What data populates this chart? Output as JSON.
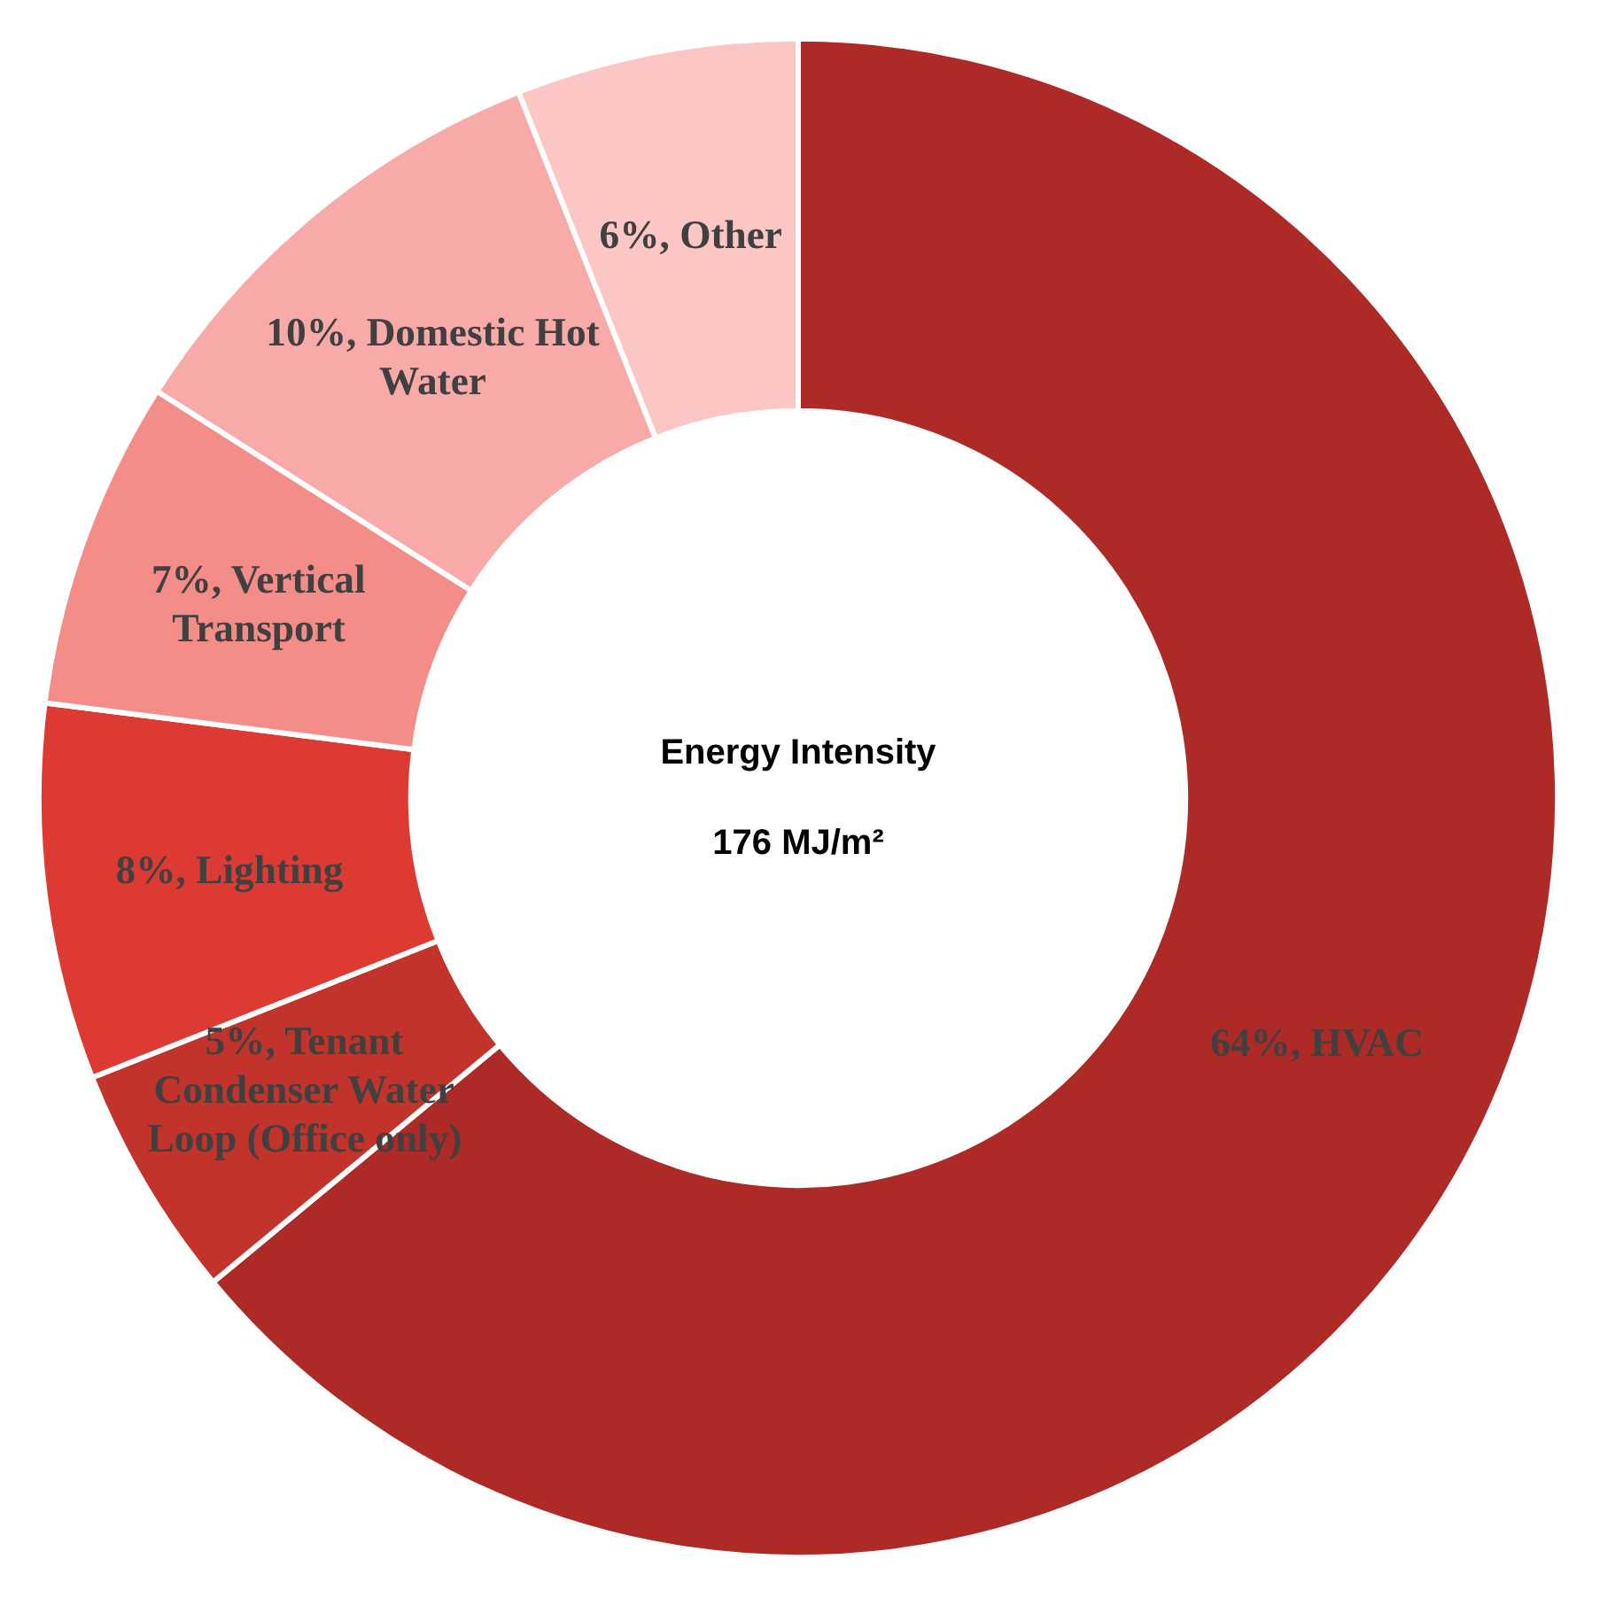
{
  "chart_data": {
    "type": "donut",
    "title": "Energy Intensity",
    "subtitle": "176 MJ/m²",
    "categories": [
      "HVAC",
      "Tenant Condenser Water Loop (Office only)",
      "Lighting",
      "Vertical Transport",
      "Domestic Hot Water",
      "Other"
    ],
    "values": [
      64,
      5,
      8,
      7,
      10,
      6
    ],
    "colors": [
      "#ad2a26",
      "#c2332c",
      "#dc3a33",
      "#f48c88",
      "#f8aaa9",
      "#fbc6c4"
    ],
    "value_labels": [
      "64%",
      "5%",
      "8%",
      "7%",
      "10%",
      "6%"
    ],
    "legend": false
  }
}
